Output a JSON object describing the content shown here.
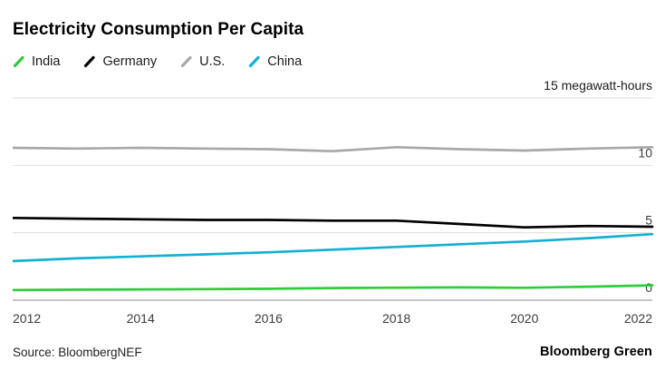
{
  "source": "Source: BloombergNEF",
  "brand": "Bloomberg Green",
  "unit_label": "15 megawatt-hours",
  "colors": {
    "india": "#2dcd3a",
    "germany": "#000000",
    "us": "#a8a8a8",
    "china": "#12b0d2",
    "gridline": "#dedede",
    "axis": "#8c8c8c"
  },
  "chart_data": {
    "type": "line",
    "title": "Electricity Consumption Per Capita",
    "ylabel": "megawatt-hours",
    "ylim": [
      0,
      15
    ],
    "y_ticks": [
      0,
      5,
      10,
      15
    ],
    "x_ticks": [
      2012,
      2014,
      2016,
      2018,
      2020,
      2022
    ],
    "grid": true,
    "legend_position": "top",
    "x": [
      2012,
      2013,
      2014,
      2015,
      2016,
      2017,
      2018,
      2019,
      2020,
      2021,
      2022
    ],
    "series": [
      {
        "name": "India",
        "color": "#2dcd3a",
        "values": [
          0.75,
          0.78,
          0.8,
          0.82,
          0.85,
          0.9,
          0.93,
          0.95,
          0.92,
          1.0,
          1.1
        ]
      },
      {
        "name": "Germany",
        "color": "#000000",
        "values": [
          6.1,
          6.05,
          6.0,
          5.95,
          5.95,
          5.9,
          5.9,
          5.65,
          5.4,
          5.5,
          5.45
        ]
      },
      {
        "name": "U.S.",
        "color": "#a8a8a8",
        "values": [
          11.3,
          11.25,
          11.3,
          11.25,
          11.2,
          11.05,
          11.35,
          11.2,
          11.1,
          11.25,
          11.35
        ]
      },
      {
        "name": "China",
        "color": "#12b0d2",
        "values": [
          2.9,
          3.1,
          3.25,
          3.4,
          3.55,
          3.75,
          3.95,
          4.15,
          4.35,
          4.6,
          4.9
        ]
      }
    ]
  }
}
